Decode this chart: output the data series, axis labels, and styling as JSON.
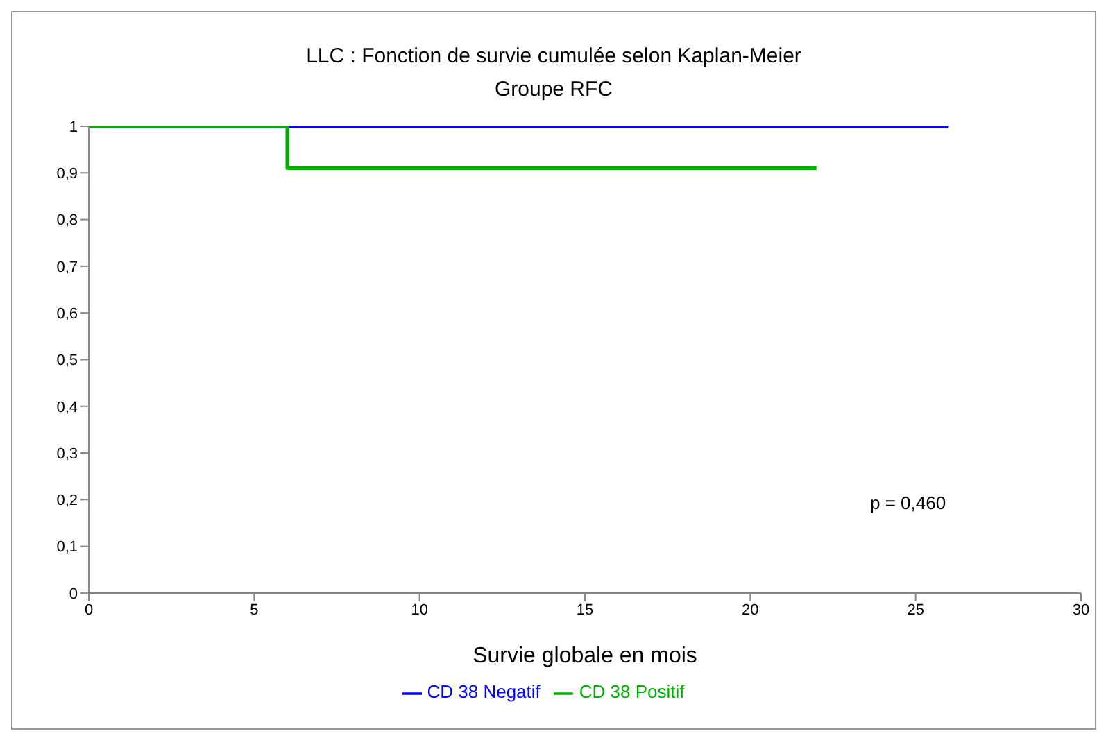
{
  "chart_data": {
    "type": "step",
    "title": "LLC : Fonction de survie cumulée selon Kaplan-Meier",
    "subtitle": "Groupe RFC",
    "xlabel": "Survie globale en mois",
    "xlim": [
      0,
      30
    ],
    "xticks": [
      0,
      5,
      10,
      15,
      20,
      25,
      30
    ],
    "ylim": [
      0,
      1
    ],
    "yticks": [
      0,
      {
        "value": 0.1,
        "label": "0,1"
      },
      {
        "value": 0.2,
        "label": "0,2"
      },
      {
        "value": 0.3,
        "label": "0,3"
      },
      {
        "value": 0.4,
        "label": "0,4"
      },
      {
        "value": 0.5,
        "label": "0,5"
      },
      {
        "value": 0.6,
        "label": "0,6"
      },
      {
        "value": 0.7,
        "label": "0,7"
      },
      {
        "value": 0.8,
        "label": "0,8"
      },
      {
        "value": 0.9,
        "label": "0,9"
      },
      1
    ],
    "series": [
      {
        "name": "CD 38 Negatif",
        "color": "#0000ff",
        "x": [
          0,
          26
        ],
        "values": [
          1,
          1
        ]
      },
      {
        "name": "CD 38 Positif",
        "color": "#00b000",
        "x": [
          0,
          6,
          22
        ],
        "values": [
          1,
          0.91,
          0.91
        ]
      }
    ],
    "legend": "bottom",
    "annotations": [
      "p = 0,460"
    ]
  }
}
